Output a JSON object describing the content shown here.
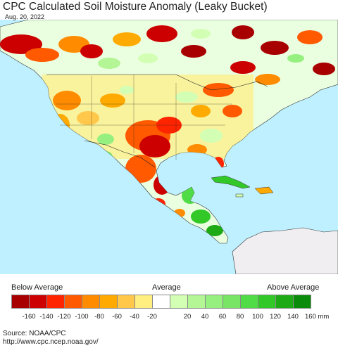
{
  "title": "CPC Calculated Soil Moisture Anomaly (Leaky Bucket)",
  "date": "Aug. 20, 2022",
  "legend": {
    "below_label": "Below Average",
    "average_label": "Average",
    "above_label": "Above Average",
    "colors": [
      "#a80000",
      "#cc0000",
      "#ff2400",
      "#ff5a00",
      "#ff8c00",
      "#ffaa00",
      "#ffc84b",
      "#ffee80",
      "#ffffff",
      "#d2ffb4",
      "#b4f596",
      "#96f080",
      "#78e664",
      "#50dc46",
      "#32c828",
      "#1eaa14",
      "#0a8c0a"
    ],
    "ticks": [
      "-160",
      "-140",
      "-120",
      "-100",
      "-80",
      "-60",
      "-40",
      "-20",
      "20",
      "40",
      "60",
      "80",
      "100",
      "120",
      "140",
      "160 mm"
    ]
  },
  "source": "Source: NOAA/CPC",
  "url": "http://www.cpc.ncep.noaa.gov/",
  "map": {
    "ocean_color": "#bff0ff",
    "land_outside_color": "#f0eef0"
  }
}
